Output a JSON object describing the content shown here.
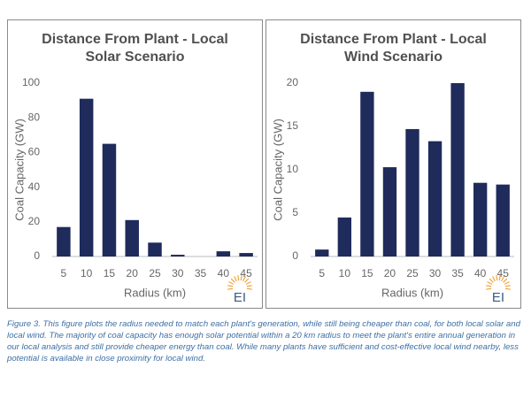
{
  "chart_data": [
    {
      "type": "bar",
      "title": "Distance From Plant - Local Solar Scenario",
      "x_label": "Radius (km)",
      "y_label": "Coal Capacity (GW)",
      "categories": [
        "5",
        "10",
        "15",
        "20",
        "25",
        "30",
        "35",
        "40",
        "45"
      ],
      "values": [
        17,
        91,
        65,
        21,
        8,
        1,
        0,
        3,
        2
      ],
      "color": "#1f2b5b",
      "ylim": [
        0,
        100
      ],
      "yticks": [
        0,
        20,
        40,
        60,
        80,
        100
      ],
      "grid": false,
      "logo": "EI"
    },
    {
      "type": "bar",
      "title": "Distance From Plant  - Local Wind Scenario",
      "x_label": "Radius (km)",
      "y_label": "Coal Capacity (GW)",
      "categories": [
        "5",
        "10",
        "15",
        "20",
        "25",
        "30",
        "35",
        "40",
        "45"
      ],
      "values": [
        0.8,
        4.5,
        19,
        10.3,
        14.7,
        13.3,
        20,
        8.5,
        8.3
      ],
      "color": "#1f2b5b",
      "ylim": [
        0,
        20
      ],
      "yticks": [
        0,
        5,
        10,
        15,
        20
      ],
      "grid": false,
      "logo": "EI"
    }
  ],
  "caption": "Figure 3. This figure plots the radius needed to match each plant's generation, while still being cheaper than coal, for both local solar and local wind. The majority of coal capacity has enough solar potential within a 20 km radius to meet the plant's entire annual generation in our local analysis and still provide cheaper energy than coal. While many plants have sufficient and cost-effective local wind nearby, less potential is available in close proximity for local wind."
}
